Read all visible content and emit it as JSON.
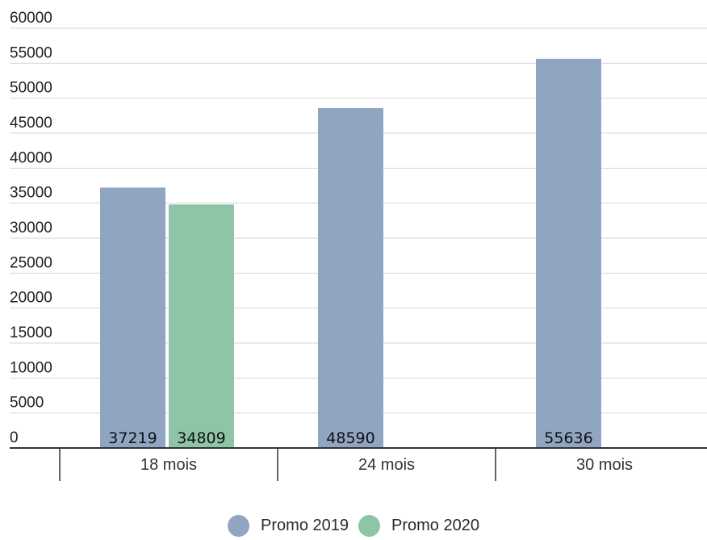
{
  "chart_data": {
    "type": "bar",
    "categories": [
      "18 mois",
      "24 mois",
      "30 mois"
    ],
    "series": [
      {
        "name": "Promo 2019",
        "values": [
          37219,
          48590,
          55636
        ],
        "color": "#8fa5c2"
      },
      {
        "name": "Promo 2020",
        "values": [
          34809,
          null,
          null
        ],
        "color": "#8dc5a6"
      }
    ],
    "ylim": [
      0,
      60000
    ],
    "yticks": [
      0,
      5000,
      10000,
      15000,
      20000,
      25000,
      30000,
      35000,
      40000,
      45000,
      50000,
      55000,
      60000
    ],
    "grid": true,
    "legend_position": "bottom-center",
    "title": "",
    "xlabel": "",
    "ylabel": ""
  }
}
